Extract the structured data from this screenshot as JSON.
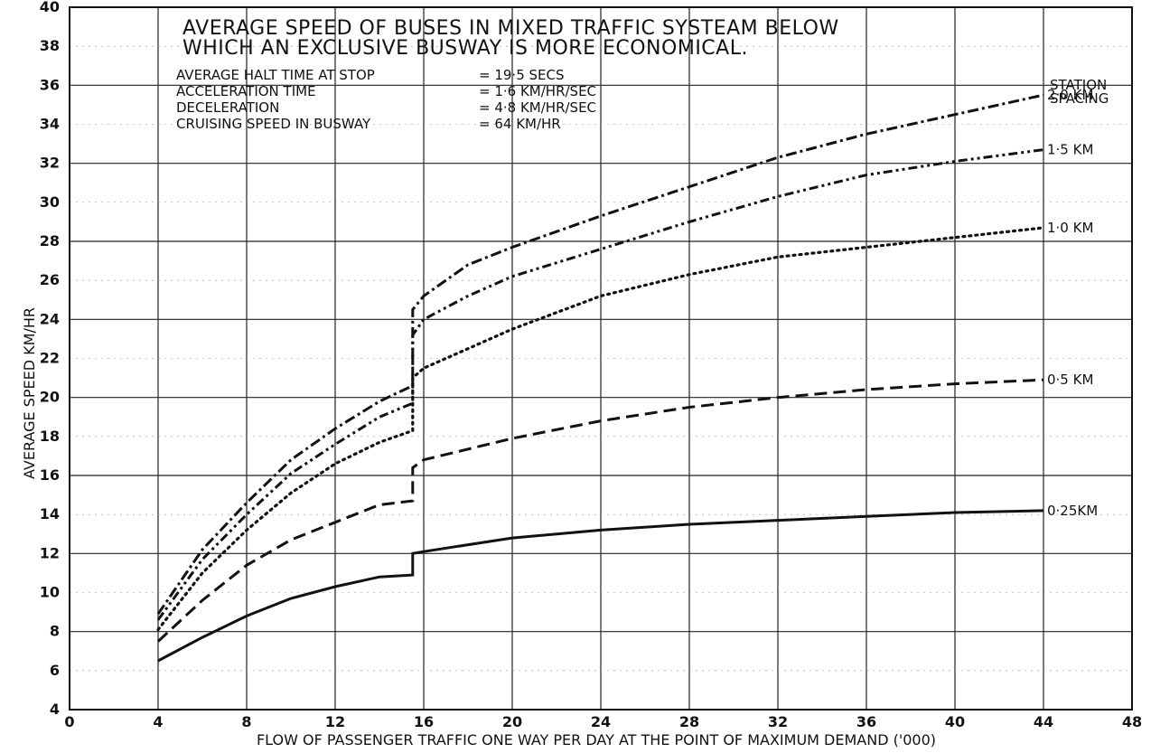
{
  "chart_data": {
    "type": "line",
    "title_lines": [
      "AVERAGE  SPEED  OF  BUSES  IN  MIXED  TRAFFIC  SYSTEAM  BELOW",
      "WHICH   AN   EXCLUSIVE   BUSWAY   IS   MORE  ECONOMICAL."
    ],
    "parameters": [
      {
        "label": "AVERAGE  HALT  TIME  AT  STOP",
        "value": "= 19·5 SECS"
      },
      {
        "label": "ACCELERATION   TIME",
        "value": "=  1·6 KM/HR/SEC"
      },
      {
        "label": "DECELERATION",
        "value": "=  4·8 KM/HR/SEC"
      },
      {
        "label": "CRUISING  SPEED  IN  BUSWAY",
        "value": "=  64 KM/HR"
      }
    ],
    "xlabel": "FLOW  OF  PASSENGER  TRAFFIC ONE  WAY   PER  DAY  AT  THE   POINT  OF  MAXIMUM   DEMAND  ('000)",
    "ylabel": "AVERAGE  SPEED  KM/HR",
    "xlim": [
      0,
      48
    ],
    "ylim": [
      4,
      40
    ],
    "xticks": [
      0,
      4,
      8,
      12,
      16,
      20,
      24,
      28,
      32,
      36,
      40,
      44,
      48
    ],
    "yticks": [
      4,
      6,
      8,
      10,
      12,
      14,
      16,
      18,
      20,
      22,
      24,
      26,
      28,
      30,
      32,
      34,
      36,
      38,
      40
    ],
    "grid": true,
    "legend_title": "STATION SPACING",
    "series": [
      {
        "name": "2·0 KM",
        "style": "dash-dot",
        "points": [
          [
            4,
            8.9
          ],
          [
            6,
            12.2
          ],
          [
            8,
            14.6
          ],
          [
            10,
            16.8
          ],
          [
            12,
            18.4
          ],
          [
            14,
            19.8
          ],
          [
            15.5,
            20.6
          ],
          [
            15.5,
            24.5
          ],
          [
            16,
            25.2
          ],
          [
            18,
            26.8
          ],
          [
            20,
            27.7
          ],
          [
            24,
            29.3
          ],
          [
            28,
            30.8
          ],
          [
            32,
            32.3
          ],
          [
            36,
            33.5
          ],
          [
            40,
            34.5
          ],
          [
            44,
            35.5
          ]
        ]
      },
      {
        "name": "1·5 KM",
        "style": "dash-dot-dot",
        "points": [
          [
            4,
            8.6
          ],
          [
            6,
            11.7
          ],
          [
            8,
            14.0
          ],
          [
            10,
            16.1
          ],
          [
            12,
            17.6
          ],
          [
            14,
            19.0
          ],
          [
            15.5,
            19.7
          ],
          [
            15.5,
            23.2
          ],
          [
            16,
            24.0
          ],
          [
            18,
            25.2
          ],
          [
            20,
            26.2
          ],
          [
            24,
            27.6
          ],
          [
            28,
            29.0
          ],
          [
            32,
            30.3
          ],
          [
            36,
            31.4
          ],
          [
            40,
            32.1
          ],
          [
            44,
            32.7
          ]
        ]
      },
      {
        "name": "1·0 KM",
        "style": "dotted",
        "points": [
          [
            4,
            8.1
          ],
          [
            6,
            11.0
          ],
          [
            8,
            13.2
          ],
          [
            10,
            15.1
          ],
          [
            12,
            16.6
          ],
          [
            14,
            17.7
          ],
          [
            15.5,
            18.3
          ],
          [
            15.5,
            21.0
          ],
          [
            16,
            21.5
          ],
          [
            20,
            23.5
          ],
          [
            24,
            25.2
          ],
          [
            28,
            26.3
          ],
          [
            32,
            27.2
          ],
          [
            36,
            27.7
          ],
          [
            40,
            28.2
          ],
          [
            44,
            28.7
          ]
        ]
      },
      {
        "name": "0·5 KM",
        "style": "dashed",
        "points": [
          [
            4,
            7.5
          ],
          [
            6,
            9.6
          ],
          [
            8,
            11.4
          ],
          [
            10,
            12.7
          ],
          [
            12,
            13.6
          ],
          [
            14,
            14.5
          ],
          [
            15.5,
            14.7
          ],
          [
            15.5,
            16.4
          ],
          [
            16,
            16.8
          ],
          [
            20,
            17.9
          ],
          [
            24,
            18.8
          ],
          [
            28,
            19.5
          ],
          [
            32,
            20.0
          ],
          [
            36,
            20.4
          ],
          [
            40,
            20.7
          ],
          [
            44,
            20.9
          ]
        ]
      },
      {
        "name": "0·25KM",
        "style": "solid",
        "points": [
          [
            4,
            6.5
          ],
          [
            6,
            7.7
          ],
          [
            8,
            8.8
          ],
          [
            10,
            9.7
          ],
          [
            12,
            10.3
          ],
          [
            14,
            10.8
          ],
          [
            15.5,
            10.9
          ],
          [
            15.5,
            12.0
          ],
          [
            16,
            12.1
          ],
          [
            20,
            12.8
          ],
          [
            24,
            13.2
          ],
          [
            28,
            13.5
          ],
          [
            32,
            13.7
          ],
          [
            36,
            13.9
          ],
          [
            40,
            14.1
          ],
          [
            44,
            14.2
          ]
        ]
      }
    ]
  }
}
